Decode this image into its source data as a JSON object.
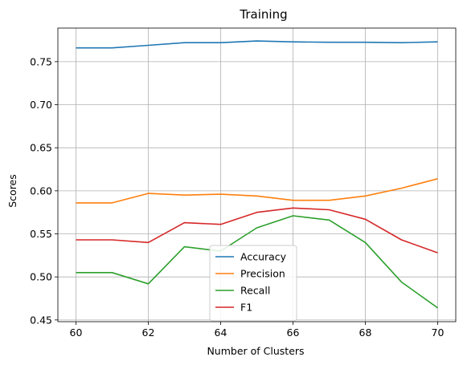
{
  "chart_data": {
    "type": "line",
    "title": "Training",
    "xlabel": "Number of Clusters",
    "ylabel": "Scores",
    "x": [
      60,
      61,
      62,
      63,
      64,
      65,
      66,
      67,
      68,
      69,
      70
    ],
    "xlim": [
      59.5,
      70.5
    ],
    "ylim": [
      0.448,
      0.789
    ],
    "xticks": [
      60,
      62,
      64,
      66,
      68,
      70
    ],
    "yticks": [
      0.45,
      0.5,
      0.55,
      0.6,
      0.65,
      0.7,
      0.75
    ],
    "grid": true,
    "legend_position": "lower-center",
    "series": [
      {
        "name": "Accuracy",
        "color": "#1f77b4",
        "values": [
          0.766,
          0.766,
          0.769,
          0.772,
          0.772,
          0.774,
          0.773,
          0.7725,
          0.7725,
          0.772,
          0.773
        ]
      },
      {
        "name": "Precision",
        "color": "#ff7f0e",
        "values": [
          0.586,
          0.586,
          0.597,
          0.595,
          0.596,
          0.594,
          0.589,
          0.589,
          0.594,
          0.603,
          0.614
        ]
      },
      {
        "name": "Recall",
        "color": "#2ca02c",
        "values": [
          0.505,
          0.505,
          0.492,
          0.535,
          0.53,
          0.557,
          0.571,
          0.566,
          0.54,
          0.494,
          0.464
        ]
      },
      {
        "name": "F1",
        "color": "#d62728",
        "values": [
          0.543,
          0.543,
          0.54,
          0.563,
          0.561,
          0.575,
          0.58,
          0.578,
          0.567,
          0.543,
          0.528
        ]
      }
    ]
  }
}
